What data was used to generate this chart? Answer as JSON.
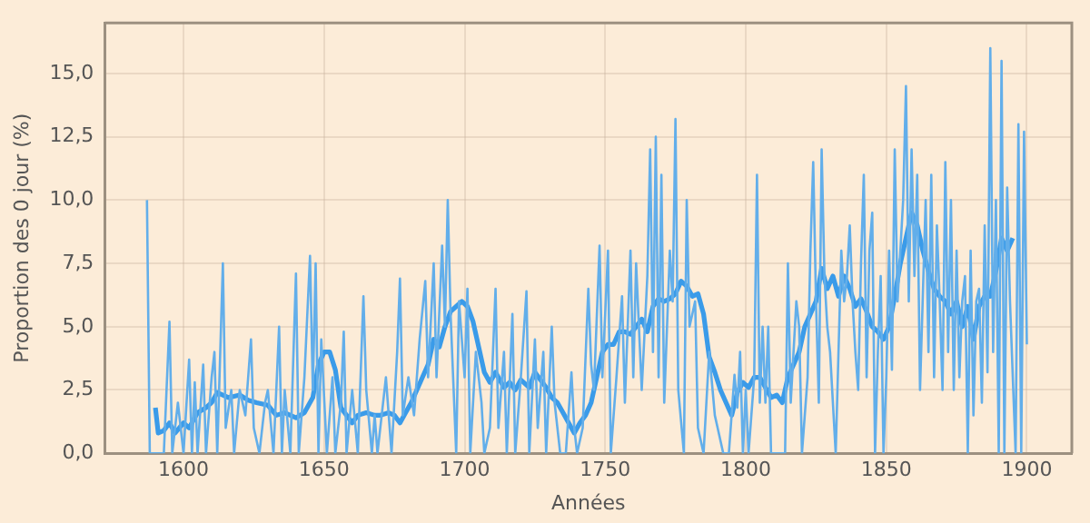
{
  "chart_data": {
    "type": "line",
    "xlabel": "Années",
    "ylabel": "Proportion des 0 jour (%)",
    "xlim": [
      1572,
      1916
    ],
    "ylim": [
      0,
      17
    ],
    "xticks": [
      1600,
      1650,
      1700,
      1750,
      1800,
      1850,
      1900
    ],
    "yticks": [
      {
        "value": 0,
        "label": "0,0"
      },
      {
        "value": 2.5,
        "label": "2,5"
      },
      {
        "value": 5,
        "label": "5,0"
      },
      {
        "value": 7.5,
        "label": "7,5"
      },
      {
        "value": 10,
        "label": "10,0"
      },
      {
        "value": 12.5,
        "label": "12,5"
      },
      {
        "value": 15,
        "label": "15,0"
      }
    ],
    "grid": true,
    "legend": false,
    "marker": "none",
    "line_style": "solid",
    "series": [
      {
        "color": "#62aeea",
        "x": [
          1587,
          1588,
          1590,
          1593,
          1595,
          1596,
          1598,
          1600,
          1602,
          1603,
          1604,
          1605,
          1607,
          1608,
          1610,
          1611,
          1612,
          1614,
          1615,
          1617,
          1618,
          1620,
          1622,
          1624,
          1625,
          1627,
          1629,
          1630,
          1632,
          1634,
          1635,
          1636,
          1638,
          1640,
          1641,
          1643,
          1645,
          1646,
          1647,
          1648,
          1649,
          1651,
          1653,
          1654,
          1656,
          1657,
          1658,
          1660,
          1662,
          1664,
          1665,
          1667,
          1668,
          1669,
          1672,
          1674,
          1676,
          1677,
          1678,
          1680,
          1682,
          1684,
          1686,
          1687,
          1689,
          1690,
          1692,
          1693,
          1694,
          1695,
          1697,
          1698,
          1700,
          1701,
          1702,
          1704,
          1706,
          1707,
          1709,
          1711,
          1712,
          1714,
          1715,
          1717,
          1718,
          1720,
          1722,
          1723,
          1725,
          1726,
          1728,
          1729,
          1731,
          1732,
          1734,
          1736,
          1738,
          1739,
          1740,
          1742,
          1744,
          1745,
          1746,
          1748,
          1749,
          1751,
          1752,
          1754,
          1756,
          1757,
          1759,
          1760,
          1761,
          1763,
          1765,
          1766,
          1767,
          1768,
          1769,
          1770,
          1771,
          1773,
          1774,
          1775,
          1776,
          1778,
          1779,
          1780,
          1782,
          1783,
          1785,
          1787,
          1789,
          1790,
          1792,
          1794,
          1796,
          1797,
          1798,
          1799,
          1800,
          1801,
          1803,
          1804,
          1805,
          1806,
          1807,
          1808,
          1809,
          1812,
          1814,
          1815,
          1816,
          1818,
          1819,
          1820,
          1822,
          1823,
          1824,
          1825,
          1826,
          1827,
          1828,
          1829,
          1830,
          1832,
          1834,
          1835,
          1836,
          1837,
          1838,
          1839,
          1840,
          1841,
          1842,
          1843,
          1844,
          1845,
          1846,
          1847,
          1848,
          1849,
          1850,
          1851,
          1852,
          1853,
          1854,
          1856,
          1857,
          1858,
          1859,
          1860,
          1861,
          1862,
          1864,
          1865,
          1866,
          1867,
          1868,
          1869,
          1870,
          1871,
          1872,
          1873,
          1874,
          1875,
          1876,
          1877,
          1878,
          1879,
          1880,
          1881,
          1882,
          1883,
          1884,
          1885,
          1886,
          1887,
          1888,
          1889,
          1890,
          1891,
          1892,
          1893,
          1894,
          1896,
          1897,
          1898,
          1899,
          1900
        ],
        "values": [
          10,
          0,
          0,
          0,
          5.2,
          0,
          2,
          0,
          3.7,
          0,
          2.8,
          0,
          3.5,
          0,
          3,
          4,
          0,
          7.5,
          1,
          2.5,
          0,
          2.5,
          1.5,
          4.5,
          1,
          0,
          2,
          2.5,
          0,
          5,
          0,
          2.5,
          0,
          7.1,
          0,
          3,
          7.8,
          2.5,
          7.5,
          0,
          4.5,
          0,
          3,
          0,
          2,
          4.8,
          0,
          2.5,
          0,
          6.2,
          2.5,
          0,
          1.5,
          0,
          3,
          0,
          4,
          6.9,
          1.5,
          3,
          1.5,
          4.5,
          6.8,
          3,
          7.5,
          3,
          8.2,
          5,
          10,
          5.5,
          0,
          6,
          3,
          6.5,
          0,
          4,
          2,
          0,
          1,
          6.5,
          1,
          4,
          0,
          5.5,
          0,
          3,
          6.4,
          0,
          4.5,
          1,
          4,
          0,
          5,
          2,
          0,
          0,
          3.2,
          1,
          0,
          1,
          6.5,
          3.5,
          2.5,
          8.2,
          3,
          8,
          0,
          3,
          6.2,
          2,
          8,
          3,
          7.5,
          2.5,
          7,
          12,
          4,
          12.5,
          3,
          11,
          2,
          8,
          6,
          13.2,
          2.5,
          0,
          10,
          5,
          6,
          1,
          0,
          4,
          1.5,
          1,
          0,
          0,
          3.1,
          1.8,
          4,
          0,
          2.5,
          0,
          3,
          11,
          2,
          5,
          2,
          5,
          0,
          0,
          0,
          7.5,
          2,
          6,
          5,
          0,
          3,
          8,
          11.5,
          6,
          2,
          12,
          7,
          5,
          4,
          0,
          8,
          6,
          7,
          9,
          6,
          4,
          2.5,
          7.5,
          11,
          3,
          8,
          9.5,
          0,
          4,
          7,
          0,
          3,
          8,
          3.3,
          12,
          6,
          10,
          14.5,
          6,
          12,
          7,
          11,
          2.5,
          10,
          4,
          11,
          3,
          9,
          6,
          2.5,
          11.5,
          4,
          10,
          2.5,
          8,
          3,
          6,
          7,
          0,
          8,
          1.5,
          6,
          6.5,
          2,
          9,
          3.2,
          16,
          4,
          10,
          0,
          15.5,
          0,
          10.5,
          6,
          0,
          13,
          0,
          12.7,
          4.3
        ]
      },
      {
        "color": "#3a9be9",
        "x": [
          1590,
          1591,
          1593,
          1595,
          1597,
          1600,
          1602,
          1605,
          1608,
          1610,
          1612,
          1614,
          1616,
          1620,
          1623,
          1626,
          1630,
          1633,
          1636,
          1640,
          1643,
          1646,
          1648,
          1650,
          1652,
          1654,
          1656,
          1658,
          1660,
          1662,
          1665,
          1668,
          1670,
          1673,
          1675,
          1677,
          1679,
          1681,
          1683,
          1685,
          1687,
          1689,
          1691,
          1693,
          1695,
          1697,
          1699,
          1701,
          1703,
          1705,
          1707,
          1709,
          1711,
          1714,
          1716,
          1718,
          1720,
          1723,
          1725,
          1727,
          1729,
          1731,
          1733,
          1735,
          1737,
          1739,
          1741,
          1743,
          1745,
          1747,
          1749,
          1751,
          1753,
          1755,
          1757,
          1759,
          1761,
          1763,
          1765,
          1767,
          1769,
          1771,
          1773,
          1775,
          1777,
          1779,
          1781,
          1783,
          1785,
          1787,
          1789,
          1791,
          1793,
          1795,
          1797,
          1799,
          1801,
          1803,
          1805,
          1807,
          1809,
          1811,
          1813,
          1815,
          1817,
          1819,
          1821,
          1823,
          1825,
          1827,
          1829,
          1831,
          1833,
          1835,
          1837,
          1839,
          1841,
          1843,
          1845,
          1847,
          1849,
          1851,
          1853,
          1855,
          1857,
          1859,
          1861,
          1863,
          1865,
          1867,
          1869,
          1871,
          1873,
          1875,
          1877,
          1879,
          1881,
          1883,
          1885,
          1887,
          1889,
          1891,
          1893,
          1895
        ],
        "values": [
          1.8,
          0.8,
          0.9,
          1.2,
          0.8,
          1.2,
          1,
          1.6,
          1.8,
          2,
          2.4,
          2.3,
          2.2,
          2.3,
          2.1,
          2,
          1.9,
          1.5,
          1.6,
          1.4,
          1.6,
          2.2,
          3.5,
          4,
          4,
          3.3,
          1.8,
          1.5,
          1.2,
          1.5,
          1.6,
          1.5,
          1.5,
          1.6,
          1.5,
          1.2,
          1.6,
          2,
          2.5,
          3,
          3.5,
          4.5,
          4.2,
          5,
          5.6,
          5.8,
          6,
          5.8,
          5.2,
          4.2,
          3.2,
          2.8,
          3.2,
          2.6,
          2.8,
          2.5,
          2.9,
          2.6,
          3.2,
          2.9,
          2.6,
          2.2,
          2,
          1.6,
          1.2,
          0.8,
          1.2,
          1.5,
          2,
          3,
          4,
          4.3,
          4.3,
          4.8,
          4.8,
          4.7,
          5,
          5.3,
          4.8,
          5.8,
          6.1,
          6,
          6.1,
          6.3,
          6.8,
          6.6,
          6.2,
          6.3,
          5.5,
          3.8,
          3.2,
          2.5,
          2,
          1.5,
          2.4,
          2.8,
          2.6,
          3,
          3,
          2.6,
          2.2,
          2.3,
          2,
          3,
          3.5,
          4,
          5,
          5.5,
          6,
          7.3,
          6.5,
          7,
          6.2,
          7,
          6.5,
          5.8,
          6.1,
          5.6,
          5,
          4.8,
          4.5,
          5,
          6.2,
          7.5,
          8.5,
          9.5,
          9,
          8,
          7.2,
          6.5,
          6.2,
          6,
          5.5,
          6,
          5,
          5.8,
          4.5,
          5.8,
          6.2,
          6.2,
          7.2,
          8.5,
          8,
          8.5
        ]
      }
    ]
  }
}
